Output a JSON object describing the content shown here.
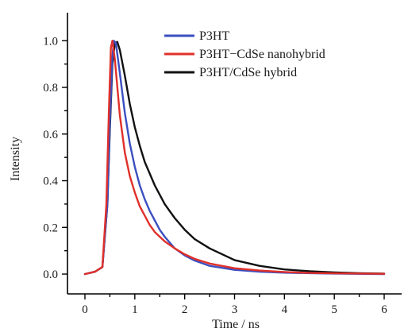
{
  "chart_data": {
    "type": "line",
    "xlabel": "Time / ns",
    "ylabel": "Intensity",
    "xlim": [
      -0.35,
      6.35
    ],
    "ylim": [
      -0.085,
      1.12
    ],
    "xticks": [
      "0",
      "1",
      "2",
      "3",
      "4",
      "5",
      "6"
    ],
    "yticks": [
      "0.0",
      "0.2",
      "0.4",
      "0.6",
      "0.8",
      "1.0"
    ],
    "xtick_values": [
      0,
      1,
      2,
      3,
      4,
      5,
      6
    ],
    "ytick_values": [
      0.0,
      0.2,
      0.4,
      0.6,
      0.8,
      1.0
    ],
    "grid": false,
    "legend_position": "top-center",
    "series": [
      {
        "name": "P3HT",
        "color": "#3b4fc0",
        "x": [
          0,
          0.2,
          0.35,
          0.45,
          0.5,
          0.55,
          0.58,
          0.62,
          0.7,
          0.8,
          0.9,
          1.0,
          1.1,
          1.2,
          1.3,
          1.4,
          1.5,
          1.6,
          1.8,
          2.0,
          2.2,
          2.5,
          3.0,
          3.5,
          4.0,
          4.5,
          5.0,
          6.0
        ],
        "y": [
          0.0,
          0.01,
          0.03,
          0.3,
          0.65,
          0.93,
          1.0,
          0.99,
          0.86,
          0.69,
          0.56,
          0.46,
          0.38,
          0.32,
          0.27,
          0.23,
          0.19,
          0.16,
          0.11,
          0.08,
          0.058,
          0.035,
          0.018,
          0.01,
          0.006,
          0.004,
          0.002,
          0.0
        ]
      },
      {
        "name": "P3HT−CdSe nanohybrid",
        "color": "#e0302a",
        "x": [
          0,
          0.2,
          0.35,
          0.43,
          0.48,
          0.52,
          0.55,
          0.6,
          0.7,
          0.8,
          0.9,
          1.0,
          1.1,
          1.2,
          1.3,
          1.4,
          1.5,
          1.6,
          1.8,
          2.0,
          2.2,
          2.5,
          3.0,
          3.5,
          4.0,
          4.5,
          5.0,
          6.0
        ],
        "y": [
          0.0,
          0.01,
          0.03,
          0.3,
          0.7,
          0.97,
          1.0,
          0.92,
          0.68,
          0.52,
          0.42,
          0.35,
          0.29,
          0.25,
          0.21,
          0.18,
          0.16,
          0.14,
          0.11,
          0.085,
          0.065,
          0.045,
          0.025,
          0.015,
          0.009,
          0.005,
          0.003,
          0.001
        ]
      },
      {
        "name": "P3HT/CdSe hybrid",
        "color": "#111111",
        "x": [
          0,
          0.2,
          0.35,
          0.45,
          0.5,
          0.55,
          0.6,
          0.65,
          0.7,
          0.8,
          0.9,
          1.0,
          1.1,
          1.2,
          1.4,
          1.6,
          1.8,
          2.0,
          2.2,
          2.5,
          3.0,
          3.5,
          4.0,
          4.5,
          5.0,
          5.5,
          6.0
        ],
        "y": [
          0.0,
          0.01,
          0.03,
          0.3,
          0.62,
          0.9,
          0.99,
          0.995,
          0.96,
          0.85,
          0.73,
          0.63,
          0.55,
          0.48,
          0.38,
          0.3,
          0.24,
          0.19,
          0.15,
          0.11,
          0.06,
          0.035,
          0.02,
          0.012,
          0.007,
          0.004,
          0.002
        ]
      }
    ]
  }
}
